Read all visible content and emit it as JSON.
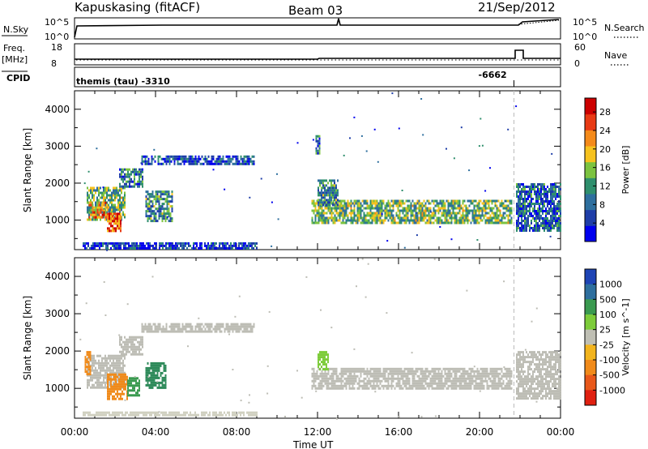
{
  "header": {
    "station": "Kapuskasing (fitACF)",
    "beam": "Beam 03",
    "date": "21/Sep/2012"
  },
  "strips": {
    "nsky": {
      "label": "N.Sky",
      "ticks": [
        "10^5",
        "10^0"
      ],
      "right_label": "N.Search",
      "right_ticks": [
        "10^5",
        "10^0"
      ]
    },
    "freq": {
      "label_1": "Freq.",
      "label_2": "[MHz]",
      "ticks": [
        "18",
        "8"
      ],
      "right_label": "Nave",
      "right_ticks": [
        "60",
        "0"
      ]
    },
    "cpid": {
      "label": "CPID",
      "first": "themis (tau) -3310",
      "second": "-6662",
      "second_time_h": 21.7
    }
  },
  "x_axis": {
    "label": "Time UT",
    "ticks": [
      "00:00",
      "04:00",
      "08:00",
      "12:00",
      "16:00",
      "20:00",
      "00:00"
    ],
    "range_hours": [
      0,
      24
    ]
  },
  "chart_data": [
    {
      "type": "heatmap",
      "title": "",
      "xlabel": "Time UT",
      "ylabel": "Slant Range [km]",
      "xlim_hours": [
        0,
        24
      ],
      "ylim": [
        200,
        4500
      ],
      "yticks": [
        1000,
        2000,
        3000,
        4000
      ],
      "colorbar": {
        "label": "Power [dB]",
        "ticks": [
          4,
          8,
          12,
          16,
          20,
          24,
          28
        ],
        "range": [
          0,
          31
        ],
        "colors": [
          "#0000ee",
          "#1f3ea8",
          "#2e6f9e",
          "#2f8f6d",
          "#7cc340",
          "#f6c21e",
          "#f48a1a",
          "#e83a14",
          "#cc0000"
        ]
      },
      "regions": [
        {
          "t0": 0.6,
          "t1": 2.5,
          "r0": 1000,
          "r1": 1900,
          "level": 0.45
        },
        {
          "t0": 0.7,
          "t1": 1.6,
          "r0": 1050,
          "r1": 1500,
          "level": 0.7
        },
        {
          "t0": 1.6,
          "t1": 2.3,
          "r0": 700,
          "r1": 1200,
          "level": 0.8
        },
        {
          "t0": 2.2,
          "t1": 3.4,
          "r0": 1900,
          "r1": 2400,
          "level": 0.3
        },
        {
          "t0": 3.3,
          "t1": 8.9,
          "r0": 2500,
          "r1": 2750,
          "level": 0.2
        },
        {
          "t0": 3.5,
          "t1": 4.8,
          "r0": 1000,
          "r1": 1800,
          "level": 0.35
        },
        {
          "t0": 11.7,
          "t1": 21.6,
          "r0": 950,
          "r1": 1550,
          "level": 0.45
        },
        {
          "t0": 12.0,
          "t1": 13.0,
          "r0": 1400,
          "r1": 2100,
          "level": 0.35
        },
        {
          "t0": 21.8,
          "t1": 24.0,
          "r0": 700,
          "r1": 2000,
          "level": 0.25
        },
        {
          "t0": 11.9,
          "t1": 12.1,
          "r0": 2800,
          "r1": 3300,
          "level": 0.3
        },
        {
          "t0": 0.4,
          "t1": 9.0,
          "r0": 250,
          "r1": 400,
          "level": 0.15
        }
      ]
    },
    {
      "type": "heatmap",
      "title": "",
      "xlabel": "Time UT",
      "ylabel": "Slant Range [km]",
      "xlim_hours": [
        0,
        24
      ],
      "ylim": [
        200,
        4500
      ],
      "yticks": [
        1000,
        2000,
        3000,
        4000
      ],
      "colorbar": {
        "label": "Velocity [m s^-1]",
        "ticks": [
          1000,
          500,
          100,
          25,
          -25,
          -100,
          -500,
          -1000
        ],
        "bands": [
          "#1e44b5",
          "#2e6f9e",
          "#3a9a50",
          "#7dcc3a",
          "#bfbfb4",
          "#f2b41e",
          "#f08a1a",
          "#e8581a",
          "#e02010"
        ]
      },
      "regions": [
        {
          "t0": 0.6,
          "t1": 2.5,
          "r0": 1000,
          "r1": 1900,
          "color": "#bdbdb5"
        },
        {
          "t0": 2.2,
          "t1": 3.4,
          "r0": 1900,
          "r1": 2400,
          "color": "#bdbdb5"
        },
        {
          "t0": 3.3,
          "t1": 8.9,
          "r0": 2500,
          "r1": 2750,
          "color": "#bdbdb5"
        },
        {
          "t0": 1.6,
          "t1": 2.6,
          "r0": 700,
          "r1": 1400,
          "color": "#f08a1a"
        },
        {
          "t0": 2.6,
          "t1": 3.2,
          "r0": 800,
          "r1": 1300,
          "color": "#3a9a50"
        },
        {
          "t0": 3.5,
          "t1": 4.5,
          "r0": 1000,
          "r1": 1700,
          "color": "#2e8a5a"
        },
        {
          "t0": 0.5,
          "t1": 0.8,
          "r0": 1400,
          "r1": 2000,
          "color": "#f08a1a"
        },
        {
          "t0": 11.7,
          "t1": 21.6,
          "r0": 1000,
          "r1": 1550,
          "color": "#bdbdb5"
        },
        {
          "t0": 12.0,
          "t1": 12.5,
          "r0": 1500,
          "r1": 2000,
          "color": "#7dcc3a"
        },
        {
          "t0": 21.8,
          "t1": 24.0,
          "r0": 700,
          "r1": 2000,
          "color": "#bdbdb5"
        },
        {
          "t0": 0.4,
          "t1": 9.0,
          "r0": 250,
          "r1": 380,
          "color": "#d0d0c0"
        }
      ]
    }
  ]
}
